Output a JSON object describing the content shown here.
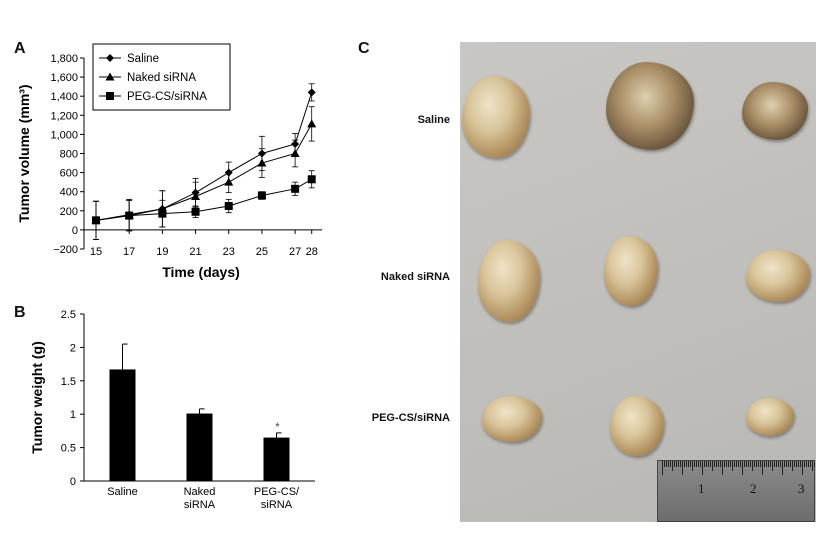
{
  "panels": {
    "a": "A",
    "b": "B",
    "c": "C"
  },
  "chart_data": [
    {
      "type": "line",
      "ylabel": "Tumor volume (mm³)",
      "xlabel": "Time (days)",
      "x": [
        15,
        17,
        19,
        21,
        23,
        25,
        27,
        28
      ],
      "ylim": [
        -200,
        1800
      ],
      "yticks": [
        "−200",
        "0",
        "200",
        "400",
        "600",
        "800",
        "1,000",
        "1,200",
        "1,400",
        "1,600",
        "1,800"
      ],
      "legend_position": "top-left",
      "series": [
        {
          "name": "Saline",
          "marker": "diamond",
          "values": [
            100,
            160,
            220,
            390,
            600,
            800,
            900,
            1440
          ],
          "errors": [
            200,
            160,
            190,
            150,
            110,
            180,
            110,
            90
          ]
        },
        {
          "name": "Naked siRNA",
          "marker": "triangle",
          "values": [
            100,
            150,
            220,
            350,
            500,
            700,
            800,
            1110
          ],
          "errors": [
            200,
            160,
            190,
            150,
            110,
            150,
            140,
            180
          ]
        },
        {
          "name": "PEG-CS/siRNA",
          "marker": "square",
          "values": [
            100,
            150,
            170,
            190,
            250,
            360,
            430,
            530
          ],
          "errors": [
            200,
            160,
            140,
            60,
            70,
            40,
            70,
            90
          ]
        }
      ]
    },
    {
      "type": "bar",
      "ylabel": "Tumor weight (g)",
      "ylim": [
        0,
        2.5
      ],
      "yticks": [
        "0",
        "0.5",
        "1",
        "1.5",
        "2",
        "2.5"
      ],
      "categories": [
        [
          "Saline"
        ],
        [
          "Naked",
          "siRNA"
        ],
        [
          "PEG-CS/",
          "siRNA"
        ]
      ],
      "values": [
        1.67,
        1.01,
        0.65
      ],
      "errors": [
        0.38,
        0.07,
        0.07
      ],
      "annotations": [
        "",
        "",
        "*"
      ]
    }
  ],
  "photo": {
    "row_labels": [
      "Saline",
      "Naked siRNA",
      "PEG-CS/siRNA"
    ],
    "ruler_numbers": [
      "1",
      "2",
      "3"
    ]
  }
}
